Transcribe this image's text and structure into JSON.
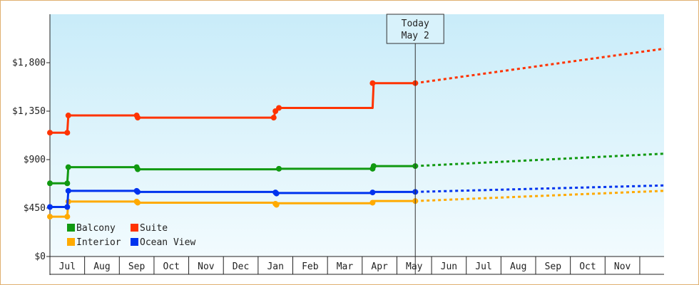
{
  "chart_data": {
    "type": "line",
    "y_axis": {
      "range": [
        0,
        2250
      ],
      "ticks": [
        0,
        450,
        900,
        1350,
        1800
      ],
      "tick_labels": [
        "$0",
        "$450",
        "$900",
        "$1,350",
        "$1,800"
      ]
    },
    "x_axis": {
      "months": [
        "Jul",
        "Aug",
        "Sep",
        "Oct",
        "Nov",
        "Dec",
        "Jan",
        "Feb",
        "Mar",
        "Apr",
        "May",
        "Jun",
        "Jul",
        "Aug",
        "Sep",
        "Oct",
        "Nov"
      ],
      "range_months": [
        -0.5,
        17.2
      ]
    },
    "today": {
      "line1": "Today",
      "line2": "May 2",
      "x": 10.03
    },
    "legend": [
      {
        "name": "Balcony",
        "color": "#119911"
      },
      {
        "name": "Suite",
        "color": "#ff3300"
      },
      {
        "name": "Interior",
        "color": "#ffaa00"
      },
      {
        "name": "Ocean View",
        "color": "#0033ee"
      }
    ],
    "series": [
      {
        "name": "Balcony",
        "color": "#119911",
        "history": [
          [
            -0.5,
            680
          ],
          [
            0.0,
            680
          ],
          [
            0.03,
            830
          ],
          [
            2.0,
            830
          ],
          [
            2.03,
            810
          ],
          [
            6.1,
            810
          ],
          [
            6.13,
            815
          ],
          [
            8.8,
            815
          ],
          [
            8.83,
            840
          ],
          [
            10.03,
            840
          ]
        ],
        "markers": [
          [
            -0.5,
            680
          ],
          [
            0.0,
            680
          ],
          [
            0.03,
            830
          ],
          [
            2.0,
            830
          ],
          [
            2.03,
            810
          ],
          [
            6.1,
            815
          ],
          [
            8.8,
            815
          ],
          [
            8.83,
            840
          ],
          [
            10.03,
            840
          ]
        ],
        "forecast": [
          [
            10.03,
            840
          ],
          [
            17.2,
            955
          ]
        ]
      },
      {
        "name": "Suite",
        "color": "#ff3300",
        "history": [
          [
            -0.5,
            1150
          ],
          [
            0.0,
            1150
          ],
          [
            0.03,
            1310
          ],
          [
            2.0,
            1310
          ],
          [
            2.03,
            1290
          ],
          [
            5.95,
            1290
          ],
          [
            6.0,
            1350
          ],
          [
            6.1,
            1380
          ],
          [
            8.8,
            1380
          ],
          [
            8.83,
            1610
          ],
          [
            10.03,
            1610
          ]
        ],
        "markers": [
          [
            -0.5,
            1150
          ],
          [
            0.0,
            1150
          ],
          [
            0.03,
            1310
          ],
          [
            2.0,
            1310
          ],
          [
            2.03,
            1290
          ],
          [
            5.95,
            1290
          ],
          [
            6.0,
            1350
          ],
          [
            6.1,
            1380
          ],
          [
            8.8,
            1610
          ],
          [
            10.03,
            1610
          ]
        ],
        "forecast": [
          [
            10.03,
            1610
          ],
          [
            17.2,
            1930
          ]
        ]
      },
      {
        "name": "Interior",
        "color": "#ffaa00",
        "history": [
          [
            -0.5,
            370
          ],
          [
            0.0,
            370
          ],
          [
            0.03,
            510
          ],
          [
            2.0,
            510
          ],
          [
            2.03,
            500
          ],
          [
            6.0,
            500
          ],
          [
            6.03,
            480
          ],
          [
            6.06,
            495
          ],
          [
            8.8,
            495
          ],
          [
            8.83,
            515
          ],
          [
            10.03,
            515
          ]
        ],
        "markers": [
          [
            -0.5,
            370
          ],
          [
            0.0,
            370
          ],
          [
            0.03,
            510
          ],
          [
            2.0,
            510
          ],
          [
            2.03,
            500
          ],
          [
            6.0,
            490
          ],
          [
            6.03,
            480
          ],
          [
            8.8,
            500
          ],
          [
            10.03,
            515
          ]
        ],
        "forecast": [
          [
            10.03,
            515
          ],
          [
            17.2,
            610
          ]
        ]
      },
      {
        "name": "Ocean View",
        "color": "#0033ee",
        "history": [
          [
            -0.5,
            460
          ],
          [
            0.0,
            460
          ],
          [
            0.03,
            610
          ],
          [
            2.0,
            610
          ],
          [
            2.03,
            600
          ],
          [
            6.0,
            600
          ],
          [
            6.03,
            580
          ],
          [
            6.06,
            590
          ],
          [
            8.8,
            590
          ],
          [
            8.83,
            600
          ],
          [
            10.03,
            600
          ]
        ],
        "markers": [
          [
            -0.5,
            460
          ],
          [
            0.0,
            460
          ],
          [
            0.03,
            610
          ],
          [
            2.0,
            610
          ],
          [
            2.03,
            600
          ],
          [
            6.0,
            595
          ],
          [
            6.03,
            585
          ],
          [
            8.8,
            595
          ],
          [
            10.03,
            600
          ]
        ],
        "forecast": [
          [
            10.03,
            600
          ],
          [
            17.2,
            660
          ]
        ]
      }
    ]
  }
}
